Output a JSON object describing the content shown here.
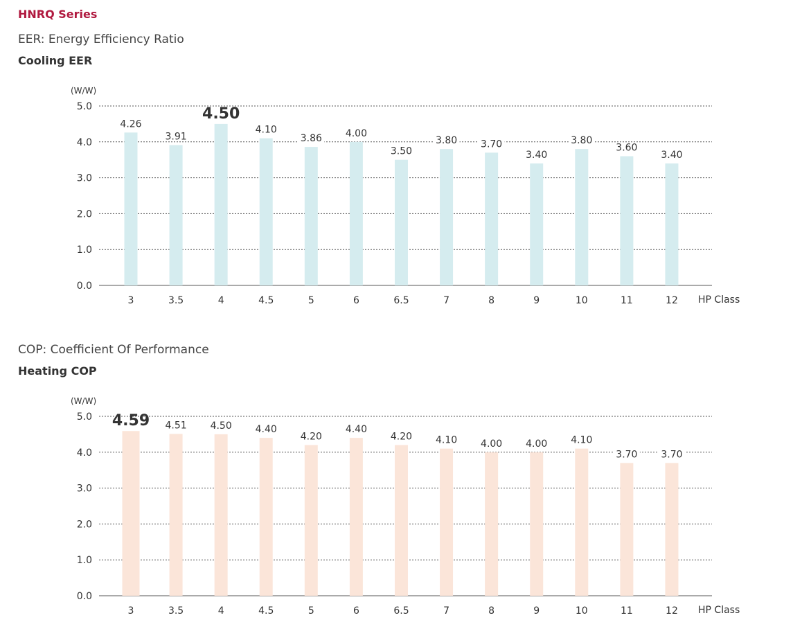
{
  "header": {
    "series_title": "HNRQ Series"
  },
  "sections": {
    "eer": {
      "description": "EER: Energy Efficiency Ratio",
      "heading": "Cooling EER"
    },
    "cop": {
      "description": "COP: Coefficient Of Performance",
      "heading": "Heating COP"
    }
  },
  "colors": {
    "title_accent": "#b0193f",
    "cooling_bar": "#d5ecef",
    "heating_bar": "#fbe5d9",
    "axis": "#555555",
    "text": "#333333"
  },
  "chart_data": [
    {
      "type": "bar",
      "categories": [
        "3",
        "3.5",
        "4",
        "4.5",
        "5",
        "6",
        "6.5",
        "7",
        "8",
        "9",
        "10",
        "11",
        "12"
      ],
      "values": [
        4.26,
        3.91,
        4.5,
        4.1,
        3.86,
        4.0,
        3.5,
        3.8,
        3.7,
        3.4,
        3.8,
        3.6,
        3.4
      ],
      "value_labels": [
        "4.26",
        "3.91",
        "4.50",
        "4.10",
        "3.86",
        "4.00",
        "3.50",
        "3.80",
        "3.70",
        "3.40",
        "3.80",
        "3.60",
        "3.40"
      ],
      "highlight_index": 2,
      "title": "Cooling EER",
      "ylabel": "(W/W)",
      "xlabel": "HP  Class",
      "ylim": [
        0,
        5
      ],
      "yticks": [
        "0.0",
        "1.0",
        "2.0",
        "3.0",
        "4.0",
        "5.0"
      ],
      "grid": "dashed horizontal",
      "bar_color": "#d5ecef"
    },
    {
      "type": "bar",
      "categories": [
        "3",
        "3.5",
        "4",
        "4.5",
        "5",
        "6",
        "6.5",
        "7",
        "8",
        "9",
        "10",
        "11",
        "12"
      ],
      "values": [
        4.59,
        4.51,
        4.5,
        4.4,
        4.2,
        4.4,
        4.2,
        4.1,
        4.0,
        4.0,
        4.1,
        3.7,
        3.7
      ],
      "value_labels": [
        "4.59",
        "4.51",
        "4.50",
        "4.40",
        "4.20",
        "4.40",
        "4.20",
        "4.10",
        "4.00",
        "4.00",
        "4.10",
        "3.70",
        "3.70"
      ],
      "highlight_index": 0,
      "title": "Heating COP",
      "ylabel": "(W/W)",
      "xlabel": "HP  Class",
      "ylim": [
        0,
        5
      ],
      "yticks": [
        "0.0",
        "1.0",
        "2.0",
        "3.0",
        "4.0",
        "5.0"
      ],
      "grid": "dashed horizontal",
      "bar_color": "#fbe5d9"
    }
  ]
}
